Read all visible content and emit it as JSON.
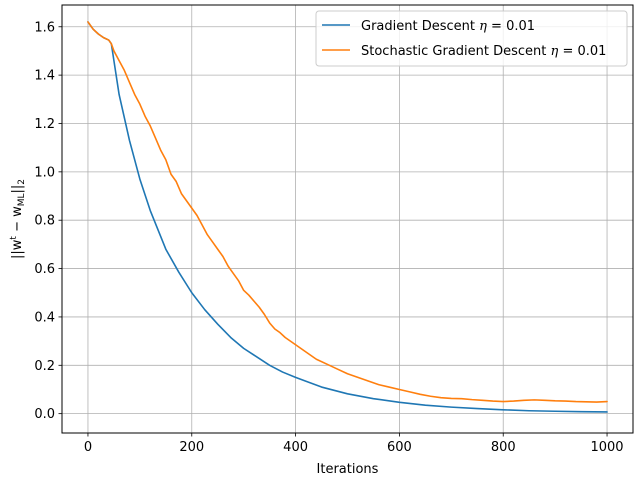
{
  "chart_data": {
    "type": "line",
    "title": "",
    "xlabel": "Iterations",
    "ylabel": {
      "prefix": "||w",
      "superscript": "t",
      "middle": " − w",
      "subscript": "ML",
      "suffix": "||",
      "norm_subscript": "2"
    },
    "xlim": [
      -50,
      1050
    ],
    "ylim": [
      -0.08,
      1.69
    ],
    "xticks": [
      0,
      200,
      400,
      600,
      800,
      1000
    ],
    "xtick_labels": [
      "0",
      "200",
      "400",
      "600",
      "800",
      "1000"
    ],
    "yticks": [
      0.0,
      0.2,
      0.4,
      0.6,
      0.8,
      1.0,
      1.2,
      1.4,
      1.6
    ],
    "ytick_labels": [
      "0.0",
      "0.2",
      "0.4",
      "0.6",
      "0.8",
      "1.0",
      "1.2",
      "1.4",
      "1.6"
    ],
    "grid": true,
    "legend_position": "top-right",
    "series": [
      {
        "name": "Gradient Descent η = 0.01",
        "legend_text": "Gradient Descent ",
        "legend_eta": "η",
        "legend_value": " = 0.01",
        "color": "#1f77b4",
        "x": [
          0,
          10,
          20,
          30,
          40,
          45,
          60,
          80,
          100,
          120,
          150,
          175,
          200,
          225,
          250,
          275,
          300,
          325,
          350,
          375,
          400,
          450,
          500,
          550,
          600,
          650,
          700,
          750,
          800,
          850,
          900,
          950,
          1000
        ],
        "y": [
          1.62,
          1.59,
          1.57,
          1.555,
          1.545,
          1.53,
          1.32,
          1.13,
          0.97,
          0.84,
          0.68,
          0.585,
          0.5,
          0.43,
          0.37,
          0.315,
          0.27,
          0.235,
          0.2,
          0.172,
          0.15,
          0.11,
          0.082,
          0.062,
          0.047,
          0.035,
          0.027,
          0.021,
          0.016,
          0.012,
          0.01,
          0.008,
          0.007
        ]
      },
      {
        "name": "Stochastic Gradient Descent η = 0.01",
        "legend_text": "Stochastic Gradient Descent ",
        "legend_eta": "η",
        "legend_value": " = 0.01",
        "color": "#ff7f0e",
        "x": [
          0,
          10,
          20,
          30,
          40,
          45,
          50,
          60,
          70,
          80,
          90,
          100,
          110,
          120,
          130,
          140,
          150,
          160,
          170,
          180,
          190,
          200,
          210,
          220,
          230,
          240,
          250,
          260,
          270,
          280,
          290,
          300,
          310,
          320,
          330,
          340,
          350,
          360,
          370,
          380,
          390,
          400,
          420,
          440,
          460,
          480,
          500,
          520,
          540,
          560,
          580,
          600,
          620,
          640,
          660,
          680,
          700,
          720,
          740,
          760,
          780,
          800,
          820,
          840,
          860,
          880,
          900,
          920,
          940,
          960,
          980,
          1000
        ],
        "y": [
          1.62,
          1.59,
          1.57,
          1.555,
          1.545,
          1.53,
          1.5,
          1.46,
          1.42,
          1.37,
          1.32,
          1.28,
          1.23,
          1.19,
          1.14,
          1.09,
          1.05,
          0.99,
          0.96,
          0.91,
          0.88,
          0.85,
          0.82,
          0.78,
          0.74,
          0.71,
          0.68,
          0.65,
          0.61,
          0.58,
          0.55,
          0.51,
          0.49,
          0.465,
          0.44,
          0.41,
          0.375,
          0.35,
          0.335,
          0.315,
          0.3,
          0.285,
          0.255,
          0.225,
          0.205,
          0.185,
          0.165,
          0.15,
          0.135,
          0.12,
          0.11,
          0.1,
          0.09,
          0.08,
          0.072,
          0.066,
          0.063,
          0.062,
          0.058,
          0.055,
          0.052,
          0.05,
          0.052,
          0.055,
          0.057,
          0.055,
          0.053,
          0.052,
          0.05,
          0.049,
          0.048,
          0.05
        ]
      }
    ]
  }
}
